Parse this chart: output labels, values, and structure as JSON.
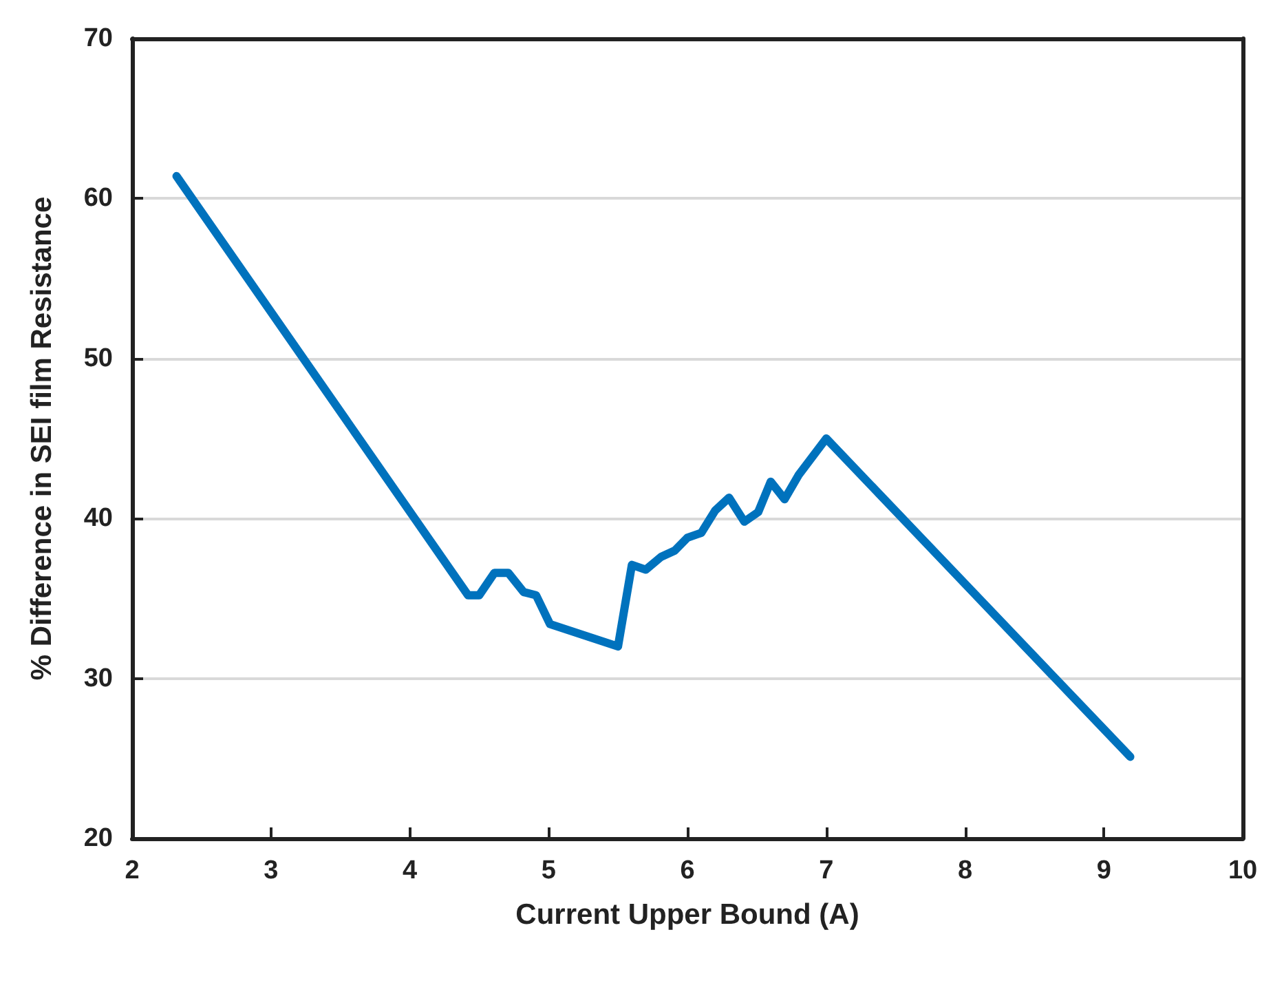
{
  "chart_data": {
    "type": "line",
    "xlabel": "Current Upper Bound (A)",
    "ylabel": "% Difference in SEI film Resistance",
    "x": [
      2.32,
      4.42,
      4.5,
      4.61,
      4.71,
      4.82,
      4.91,
      5.01,
      5.5,
      5.6,
      5.7,
      5.81,
      5.91,
      6.0,
      6.1,
      6.2,
      6.3,
      6.41,
      6.51,
      6.6,
      6.7,
      6.8,
      7.0,
      9.19
    ],
    "series": [
      {
        "color": "#0072bd",
        "values": [
          61.4,
          35.2,
          35.2,
          36.6,
          36.6,
          35.4,
          35.2,
          33.4,
          32.0,
          37.1,
          36.8,
          37.6,
          38.0,
          38.8,
          39.1,
          40.5,
          41.3,
          39.8,
          40.4,
          42.3,
          41.2,
          42.7,
          45.0,
          25.1
        ]
      }
    ],
    "xlim": [
      2,
      10
    ],
    "xticks": [
      2,
      3,
      4,
      5,
      6,
      7,
      8,
      9,
      10
    ],
    "ylim": [
      20,
      70
    ],
    "yticks": [
      20,
      30,
      40,
      50,
      60,
      70
    ],
    "grid": "y",
    "marker": "none",
    "line_style": "solid"
  }
}
